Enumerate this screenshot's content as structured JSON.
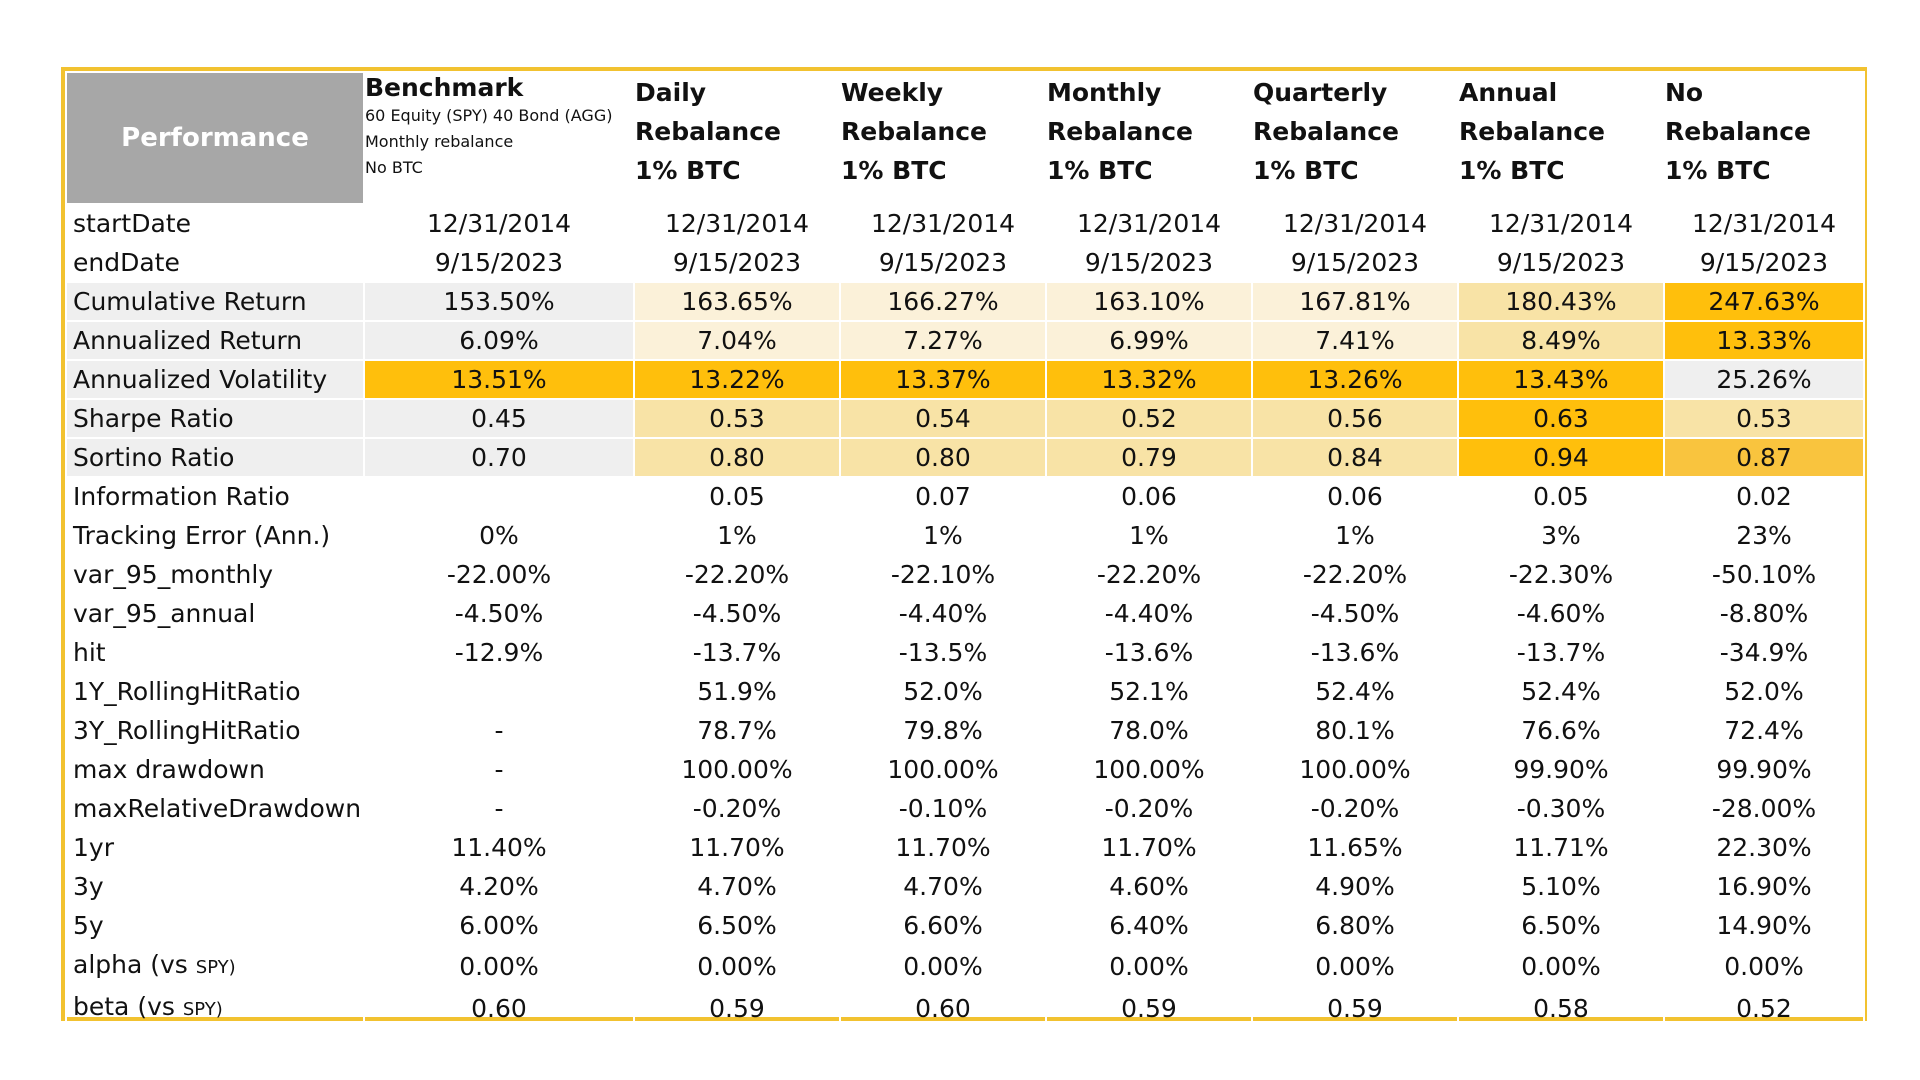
{
  "header": {
    "performance_label": "Performance",
    "benchmark": {
      "title": "Benchmark",
      "line1": "60 Equity (SPY) 40 Bond (AGG)",
      "line2": "Monthly rebalance",
      "line3": "No BTC"
    },
    "strategies": [
      {
        "line1": "Daily",
        "line2": "Rebalance",
        "line3": "1% BTC"
      },
      {
        "line1": "Weekly",
        "line2": "Rebalance",
        "line3": "1% BTC"
      },
      {
        "line1": "Monthly",
        "line2": "Rebalance",
        "line3": "1% BTC"
      },
      {
        "line1": "Quarterly",
        "line2": "Rebalance",
        "line3": "1% BTC"
      },
      {
        "line1": "Annual",
        "line2": "Rebalance",
        "line3": "1% BTC"
      },
      {
        "line1": "No",
        "line2": "Rebalance",
        "line3": "1% BTC"
      }
    ]
  },
  "rows": [
    {
      "metric": "startDate",
      "values": [
        "12/31/2014",
        "12/31/2014",
        "12/31/2014",
        "12/31/2014",
        "12/31/2014",
        "12/31/2014",
        "12/31/2014"
      ]
    },
    {
      "metric": "endDate",
      "values": [
        "9/15/2023",
        "9/15/2023",
        "9/15/2023",
        "9/15/2023",
        "9/15/2023",
        "9/15/2023",
        "9/15/2023"
      ]
    },
    {
      "metric": "Cumulative Return",
      "values": [
        "153.50%",
        "163.65%",
        "166.27%",
        "163.10%",
        "167.81%",
        "180.43%",
        "247.63%"
      ]
    },
    {
      "metric": "Annualized Return",
      "values": [
        "6.09%",
        "7.04%",
        "7.27%",
        "6.99%",
        "7.41%",
        "8.49%",
        "13.33%"
      ]
    },
    {
      "metric": "Annualized Volatility",
      "values": [
        "13.51%",
        "13.22%",
        "13.37%",
        "13.32%",
        "13.26%",
        "13.43%",
        "25.26%"
      ]
    },
    {
      "metric": "Sharpe Ratio",
      "values": [
        "0.45",
        "0.53",
        "0.54",
        "0.52",
        "0.56",
        "0.63",
        "0.53"
      ]
    },
    {
      "metric": "Sortino Ratio",
      "values": [
        "0.70",
        "0.80",
        "0.80",
        "0.79",
        "0.84",
        "0.94",
        "0.87"
      ]
    },
    {
      "metric": "Information Ratio",
      "values": [
        "",
        "0.05",
        "0.07",
        "0.06",
        "0.06",
        "0.05",
        "0.02"
      ]
    },
    {
      "metric": "Tracking Error (Ann.)",
      "values": [
        "0%",
        "1%",
        "1%",
        "1%",
        "1%",
        "3%",
        "23%"
      ]
    },
    {
      "metric": "var_95_monthly",
      "values": [
        "-22.00%",
        "-22.20%",
        "-22.10%",
        "-22.20%",
        "-22.20%",
        "-22.30%",
        "-50.10%"
      ]
    },
    {
      "metric": "var_95_annual",
      "values": [
        "-4.50%",
        "-4.50%",
        "-4.40%",
        "-4.40%",
        "-4.50%",
        "-4.60%",
        "-8.80%"
      ]
    },
    {
      "metric": "hit",
      "values": [
        "-12.9%",
        "-13.7%",
        "-13.5%",
        "-13.6%",
        "-13.6%",
        "-13.7%",
        "-34.9%"
      ]
    },
    {
      "metric": "1Y_RollingHitRatio",
      "values": [
        "",
        "51.9%",
        "52.0%",
        "52.1%",
        "52.4%",
        "52.4%",
        "52.0%"
      ]
    },
    {
      "metric": "3Y_RollingHitRatio",
      "values": [
        "-",
        "78.7%",
        "79.8%",
        "78.0%",
        "80.1%",
        "76.6%",
        "72.4%"
      ]
    },
    {
      "metric": "max drawdown",
      "values": [
        "-",
        "100.00%",
        "100.00%",
        "100.00%",
        "100.00%",
        "99.90%",
        "99.90%"
      ]
    },
    {
      "metric": "maxRelativeDrawdown",
      "values": [
        "-",
        "-0.20%",
        "-0.10%",
        "-0.20%",
        "-0.20%",
        "-0.30%",
        "-28.00%"
      ]
    },
    {
      "metric": "1yr",
      "values": [
        "11.40%",
        "11.70%",
        "11.70%",
        "11.70%",
        "11.65%",
        "11.71%",
        "22.30%"
      ]
    },
    {
      "metric": "3y",
      "values": [
        "4.20%",
        "4.70%",
        "4.70%",
        "4.60%",
        "4.90%",
        "5.10%",
        "16.90%"
      ]
    },
    {
      "metric": "5y",
      "values": [
        "6.00%",
        "6.50%",
        "6.60%",
        "6.40%",
        "6.80%",
        "6.50%",
        "14.90%"
      ]
    },
    {
      "metric": "alpha (vs",
      "metric_small": "SPY)",
      "values": [
        "0.00%",
        "0.00%",
        "0.00%",
        "0.00%",
        "0.00%",
        "0.00%",
        "0.00%"
      ]
    },
    {
      "metric": "beta (vs",
      "metric_small": "SPY)",
      "values": [
        "0.60",
        "0.59",
        "0.60",
        "0.59",
        "0.59",
        "0.58",
        "0.52"
      ]
    }
  ],
  "highlight_colors": {
    "grey": "#efefef",
    "light": "#fbf1d9",
    "mid": "#f8e3a6",
    "strong": "#f9c43e",
    "gold": "#ffbf0c",
    "border": "#f2c230",
    "header_grey": "#a7a7a7"
  }
}
